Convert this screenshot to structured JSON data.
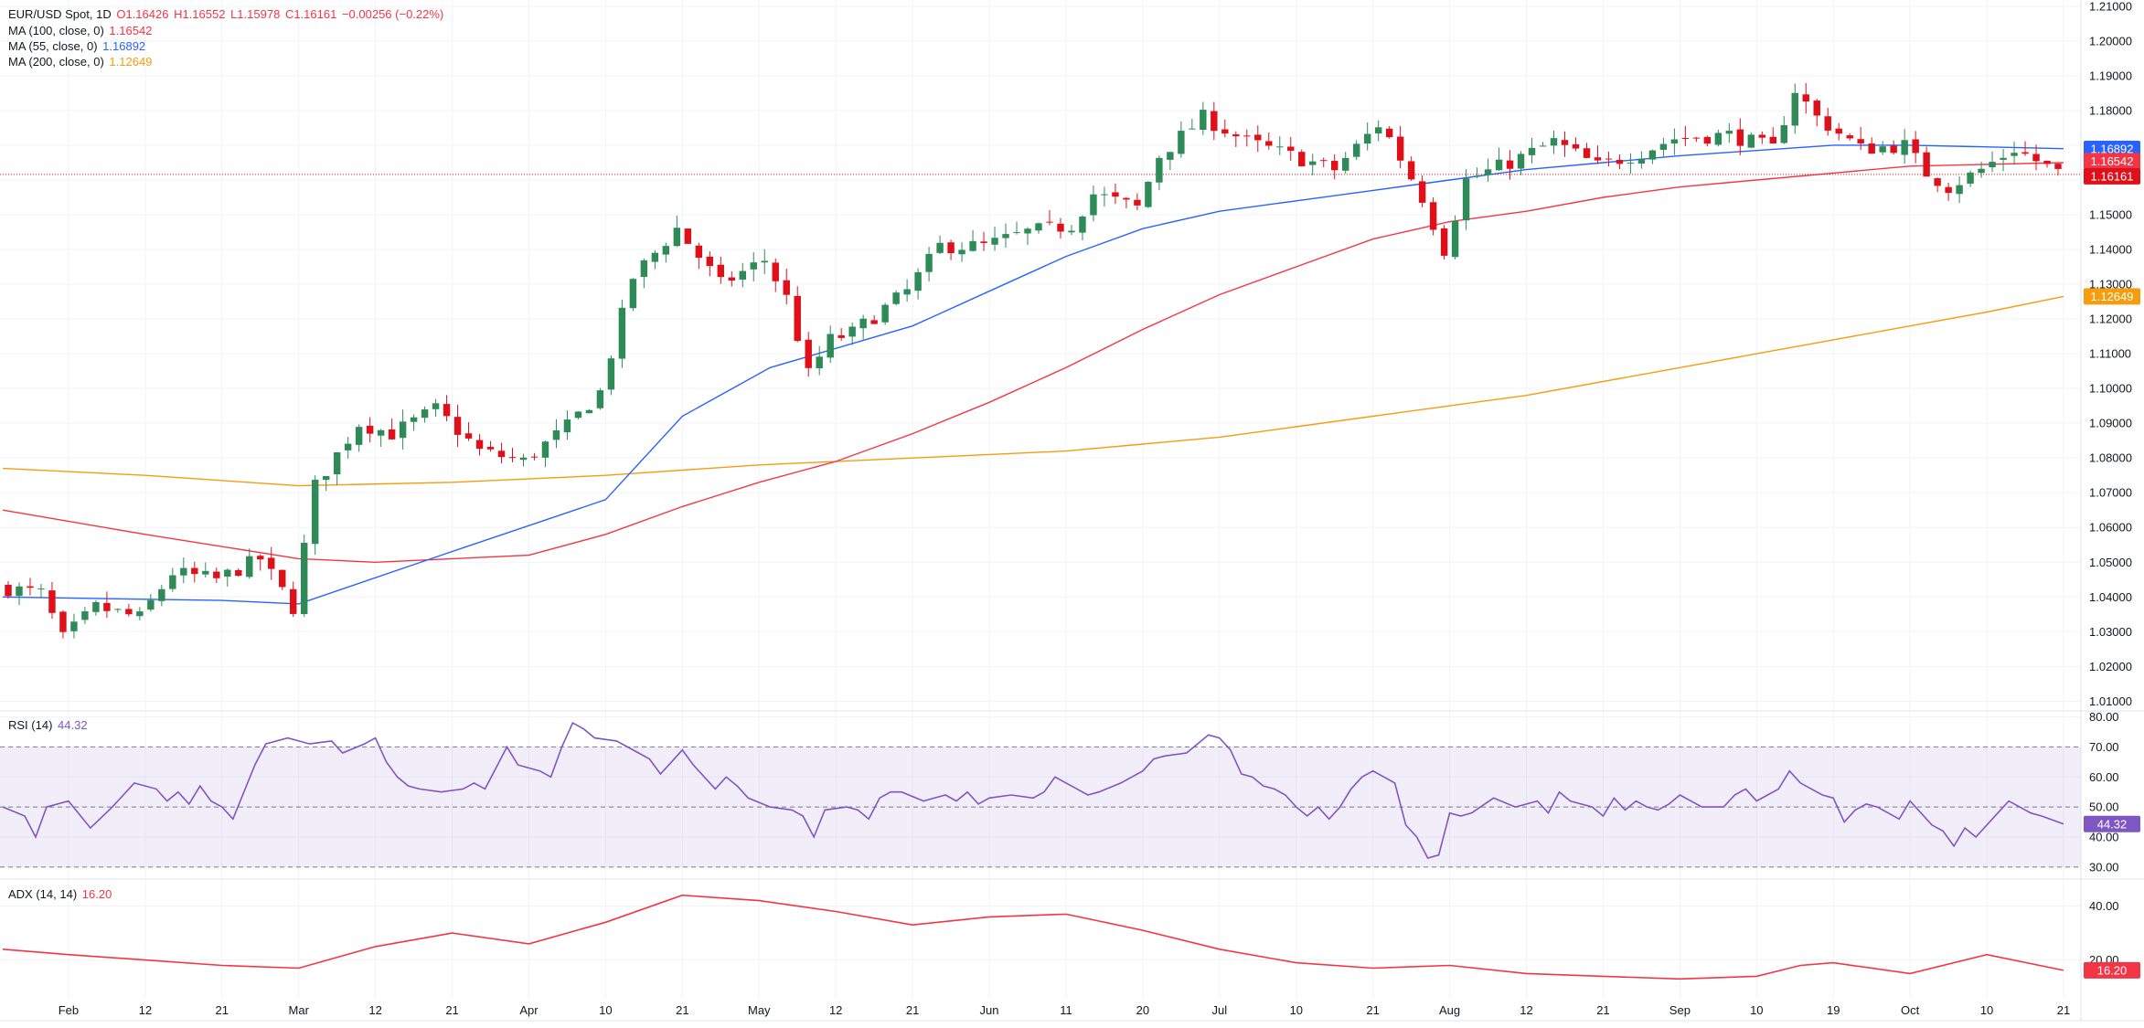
{
  "colors": {
    "up": "#089981",
    "up_body": "#2e8b57",
    "down": "#e0101a",
    "ma100": "#f23645",
    "ma55": "#2962ff",
    "ma200": "#f59d0e",
    "rsi": "#7e57c2",
    "adx": "#f23645",
    "grid": "#f0f3fa",
    "axis_text": "#131722"
  },
  "header": {
    "symbol": "EUR/USD Spot, 1D",
    "open": "O1.16426",
    "high": "H1.16552",
    "low": "L1.15978",
    "close": "C1.16161",
    "change": "−0.00256 (−0.22%)"
  },
  "legends": {
    "ma100": {
      "label": "MA (100, close, 0)",
      "value": "1.16542"
    },
    "ma55": {
      "label": "MA (55, close, 0)",
      "value": "1.16892"
    },
    "ma200": {
      "label": "MA (200, close, 0)",
      "value": "1.12649"
    },
    "rsi": {
      "label": "RSI (14)",
      "value": "44.32"
    },
    "adx": {
      "label": "ADX (14, 14)",
      "value": "16.20"
    }
  },
  "chart_data": {
    "type": "candlestick",
    "x_ticks": [
      "Feb",
      "12",
      "21",
      "Mar",
      "12",
      "21",
      "Apr",
      "10",
      "21",
      "May",
      "12",
      "21",
      "Jun",
      "11",
      "20",
      "Jul",
      "10",
      "21",
      "Aug",
      "12",
      "21",
      "Sep",
      "10",
      "19",
      "Oct",
      "10",
      "21"
    ],
    "x_tick_index": [
      6,
      13,
      20,
      27,
      34,
      41,
      48,
      55,
      62,
      69,
      76,
      83,
      90,
      97,
      104,
      111,
      118,
      125,
      132,
      139,
      146,
      153,
      160,
      167,
      174,
      181,
      188
    ],
    "price_axis": {
      "ticks": [
        "1.21000",
        "1.20000",
        "1.19000",
        "1.18000",
        "1.17000",
        "1.16000",
        "1.15000",
        "1.14000",
        "1.13000",
        "1.12000",
        "1.11000",
        "1.10000",
        "1.09000",
        "1.08000",
        "1.07000",
        "1.06000",
        "1.05000",
        "1.04000",
        "1.03000",
        "1.02000",
        "1.01000"
      ],
      "ylim": [
        1.0072,
        1.2118
      ],
      "last_price": 1.16161,
      "labels": {
        "ma55": "1.16892",
        "ma100": "1.16542",
        "last": "1.16161",
        "ma200": "1.12649"
      }
    },
    "rsi_axis": {
      "ticks": [
        "80.00",
        "70.00",
        "60.00",
        "50.00",
        "40.00",
        "30.00"
      ],
      "ylim": [
        26,
        82
      ],
      "band": [
        30,
        70
      ],
      "mid": 50,
      "last_label": "44.32"
    },
    "adx_axis": {
      "ticks": [
        "40.00",
        "20.00"
      ],
      "ylim": [
        6,
        50
      ],
      "last_label": "16.20"
    },
    "candle_count": 188,
    "price_path": [
      [
        0,
        1.043
      ],
      [
        4,
        1.041
      ],
      [
        6,
        1.028
      ],
      [
        9,
        1.037
      ],
      [
        13,
        1.034
      ],
      [
        16,
        1.047
      ],
      [
        20,
        1.045
      ],
      [
        24,
        1.051
      ],
      [
        27,
        1.037
      ],
      [
        29,
        1.072
      ],
      [
        33,
        1.09
      ],
      [
        36,
        1.087
      ],
      [
        40,
        1.094
      ],
      [
        44,
        1.082
      ],
      [
        48,
        1.079
      ],
      [
        52,
        1.089
      ],
      [
        55,
        1.099
      ],
      [
        58,
        1.132
      ],
      [
        62,
        1.146
      ],
      [
        66,
        1.13
      ],
      [
        70,
        1.137
      ],
      [
        72,
        1.126
      ],
      [
        74,
        1.104
      ],
      [
        76,
        1.114
      ],
      [
        78,
        1.116
      ],
      [
        83,
        1.128
      ],
      [
        86,
        1.141
      ],
      [
        90,
        1.141
      ],
      [
        94,
        1.145
      ],
      [
        98,
        1.147
      ],
      [
        100,
        1.156
      ],
      [
        104,
        1.152
      ],
      [
        106,
        1.167
      ],
      [
        110,
        1.178
      ],
      [
        114,
        1.171
      ],
      [
        118,
        1.167
      ],
      [
        122,
        1.163
      ],
      [
        126,
        1.176
      ],
      [
        127,
        1.172
      ],
      [
        130,
        1.155
      ],
      [
        132,
        1.14
      ],
      [
        134,
        1.16
      ],
      [
        138,
        1.165
      ],
      [
        142,
        1.171
      ],
      [
        146,
        1.164
      ],
      [
        150,
        1.168
      ],
      [
        153,
        1.172
      ],
      [
        158,
        1.173
      ],
      [
        162,
        1.169
      ],
      [
        164,
        1.186
      ],
      [
        166,
        1.178
      ],
      [
        170,
        1.169
      ],
      [
        174,
        1.17
      ],
      [
        176,
        1.162
      ],
      [
        178,
        1.158
      ],
      [
        181,
        1.163
      ],
      [
        184,
        1.169
      ],
      [
        188,
        1.162
      ]
    ],
    "ma55_path": [
      [
        0,
        1.04
      ],
      [
        20,
        1.039
      ],
      [
        27,
        1.038
      ],
      [
        40,
        1.052
      ],
      [
        55,
        1.068
      ],
      [
        62,
        1.092
      ],
      [
        70,
        1.106
      ],
      [
        83,
        1.118
      ],
      [
        90,
        1.128
      ],
      [
        97,
        1.138
      ],
      [
        104,
        1.146
      ],
      [
        111,
        1.151
      ],
      [
        118,
        1.154
      ],
      [
        125,
        1.157
      ],
      [
        132,
        1.16
      ],
      [
        139,
        1.163
      ],
      [
        146,
        1.165
      ],
      [
        153,
        1.167
      ],
      [
        167,
        1.17
      ],
      [
        174,
        1.17
      ],
      [
        188,
        1.169
      ]
    ],
    "ma100_path": [
      [
        0,
        1.065
      ],
      [
        13,
        1.058
      ],
      [
        27,
        1.051
      ],
      [
        34,
        1.05
      ],
      [
        48,
        1.052
      ],
      [
        55,
        1.058
      ],
      [
        62,
        1.066
      ],
      [
        69,
        1.073
      ],
      [
        76,
        1.079
      ],
      [
        83,
        1.087
      ],
      [
        90,
        1.096
      ],
      [
        97,
        1.106
      ],
      [
        104,
        1.117
      ],
      [
        111,
        1.127
      ],
      [
        118,
        1.135
      ],
      [
        125,
        1.143
      ],
      [
        132,
        1.148
      ],
      [
        139,
        1.151
      ],
      [
        146,
        1.155
      ],
      [
        153,
        1.158
      ],
      [
        160,
        1.16
      ],
      [
        167,
        1.162
      ],
      [
        174,
        1.164
      ],
      [
        188,
        1.165
      ]
    ],
    "ma200_path": [
      [
        0,
        1.077
      ],
      [
        13,
        1.075
      ],
      [
        27,
        1.072
      ],
      [
        41,
        1.073
      ],
      [
        55,
        1.075
      ],
      [
        69,
        1.078
      ],
      [
        83,
        1.08
      ],
      [
        90,
        1.081
      ],
      [
        97,
        1.082
      ],
      [
        104,
        1.084
      ],
      [
        111,
        1.086
      ],
      [
        118,
        1.089
      ],
      [
        125,
        1.092
      ],
      [
        132,
        1.095
      ],
      [
        139,
        1.098
      ],
      [
        146,
        1.102
      ],
      [
        153,
        1.106
      ],
      [
        160,
        1.11
      ],
      [
        167,
        1.114
      ],
      [
        174,
        1.118
      ],
      [
        181,
        1.122
      ],
      [
        188,
        1.1265
      ]
    ],
    "rsi_path": [
      [
        0,
        50
      ],
      [
        2,
        47
      ],
      [
        3,
        40
      ],
      [
        4,
        50
      ],
      [
        6,
        52
      ],
      [
        8,
        43
      ],
      [
        10,
        50
      ],
      [
        12,
        58
      ],
      [
        14,
        56
      ],
      [
        15,
        52
      ],
      [
        16,
        55
      ],
      [
        17,
        51
      ],
      [
        18,
        57
      ],
      [
        19,
        52
      ],
      [
        20,
        50
      ],
      [
        21,
        46
      ],
      [
        23,
        64
      ],
      [
        24,
        71
      ],
      [
        26,
        73
      ],
      [
        28,
        71
      ],
      [
        30,
        72
      ],
      [
        31,
        68
      ],
      [
        33,
        71
      ],
      [
        34,
        73
      ],
      [
        35,
        65
      ],
      [
        36,
        60
      ],
      [
        37,
        57
      ],
      [
        38,
        56
      ],
      [
        40,
        55
      ],
      [
        42,
        56
      ],
      [
        43,
        58
      ],
      [
        44,
        56
      ],
      [
        45,
        63
      ],
      [
        46,
        70
      ],
      [
        47,
        64
      ],
      [
        49,
        62
      ],
      [
        50,
        60
      ],
      [
        51,
        70
      ],
      [
        52,
        78
      ],
      [
        53,
        76
      ],
      [
        54,
        73
      ],
      [
        56,
        72
      ],
      [
        58,
        68
      ],
      [
        59,
        66
      ],
      [
        60,
        61
      ],
      [
        61,
        65
      ],
      [
        62,
        69
      ],
      [
        63,
        64
      ],
      [
        65,
        56
      ],
      [
        66,
        60
      ],
      [
        67,
        57
      ],
      [
        68,
        53
      ],
      [
        70,
        50
      ],
      [
        72,
        49
      ],
      [
        73,
        47
      ],
      [
        74,
        40
      ],
      [
        75,
        49
      ],
      [
        77,
        50
      ],
      [
        78,
        49
      ],
      [
        79,
        46
      ],
      [
        80,
        53
      ],
      [
        81,
        55
      ],
      [
        82,
        55
      ],
      [
        84,
        52
      ],
      [
        86,
        54
      ],
      [
        87,
        52
      ],
      [
        88,
        55
      ],
      [
        89,
        51
      ],
      [
        90,
        53
      ],
      [
        92,
        54
      ],
      [
        94,
        53
      ],
      [
        95,
        55
      ],
      [
        96,
        60
      ],
      [
        97,
        58
      ],
      [
        98,
        56
      ],
      [
        99,
        54
      ],
      [
        100,
        55
      ],
      [
        102,
        58
      ],
      [
        104,
        62
      ],
      [
        105,
        66
      ],
      [
        106,
        67
      ],
      [
        108,
        68
      ],
      [
        109,
        71
      ],
      [
        110,
        74
      ],
      [
        111,
        73
      ],
      [
        112,
        69
      ],
      [
        113,
        61
      ],
      [
        114,
        60
      ],
      [
        115,
        57
      ],
      [
        116,
        56
      ],
      [
        117,
        54
      ],
      [
        118,
        50
      ],
      [
        119,
        47
      ],
      [
        120,
        50
      ],
      [
        121,
        46
      ],
      [
        122,
        50
      ],
      [
        123,
        56
      ],
      [
        124,
        60
      ],
      [
        125,
        62
      ],
      [
        126,
        60
      ],
      [
        127,
        58
      ],
      [
        128,
        44
      ],
      [
        129,
        40
      ],
      [
        130,
        33
      ],
      [
        131,
        34
      ],
      [
        132,
        48
      ],
      [
        133,
        47
      ],
      [
        134,
        48
      ],
      [
        136,
        53
      ],
      [
        138,
        50
      ],
      [
        140,
        52
      ],
      [
        141,
        48
      ],
      [
        142,
        55
      ],
      [
        143,
        52
      ],
      [
        144,
        51
      ],
      [
        145,
        50
      ],
      [
        146,
        47
      ],
      [
        147,
        53
      ],
      [
        148,
        49
      ],
      [
        149,
        52
      ],
      [
        150,
        50
      ],
      [
        151,
        49
      ],
      [
        152,
        51
      ],
      [
        153,
        54
      ],
      [
        154,
        52
      ],
      [
        155,
        50
      ],
      [
        157,
        50
      ],
      [
        158,
        54
      ],
      [
        159,
        56
      ],
      [
        160,
        52
      ],
      [
        161,
        54
      ],
      [
        162,
        56
      ],
      [
        163,
        62
      ],
      [
        164,
        58
      ],
      [
        165,
        56
      ],
      [
        166,
        54
      ],
      [
        167,
        53
      ],
      [
        168,
        45
      ],
      [
        169,
        49
      ],
      [
        170,
        51
      ],
      [
        171,
        50
      ],
      [
        172,
        48
      ],
      [
        173,
        46
      ],
      [
        174,
        52
      ],
      [
        175,
        48
      ],
      [
        176,
        44
      ],
      [
        177,
        42
      ],
      [
        178,
        37
      ],
      [
        179,
        43
      ],
      [
        180,
        40
      ],
      [
        182,
        48
      ],
      [
        183,
        52
      ],
      [
        184,
        50
      ],
      [
        185,
        48
      ],
      [
        186,
        47
      ],
      [
        188,
        44.32
      ]
    ],
    "adx_path": [
      [
        0,
        24
      ],
      [
        6,
        22
      ],
      [
        13,
        20
      ],
      [
        20,
        18
      ],
      [
        27,
        17
      ],
      [
        34,
        25
      ],
      [
        41,
        30
      ],
      [
        48,
        26
      ],
      [
        55,
        34
      ],
      [
        62,
        44
      ],
      [
        69,
        42
      ],
      [
        76,
        38
      ],
      [
        83,
        33
      ],
      [
        90,
        36
      ],
      [
        97,
        37
      ],
      [
        104,
        31
      ],
      [
        111,
        24
      ],
      [
        118,
        19
      ],
      [
        125,
        17
      ],
      [
        132,
        18
      ],
      [
        139,
        15
      ],
      [
        146,
        14
      ],
      [
        153,
        13
      ],
      [
        160,
        14
      ],
      [
        164,
        18
      ],
      [
        167,
        19
      ],
      [
        174,
        15
      ],
      [
        181,
        22
      ],
      [
        188,
        16.2
      ]
    ]
  }
}
